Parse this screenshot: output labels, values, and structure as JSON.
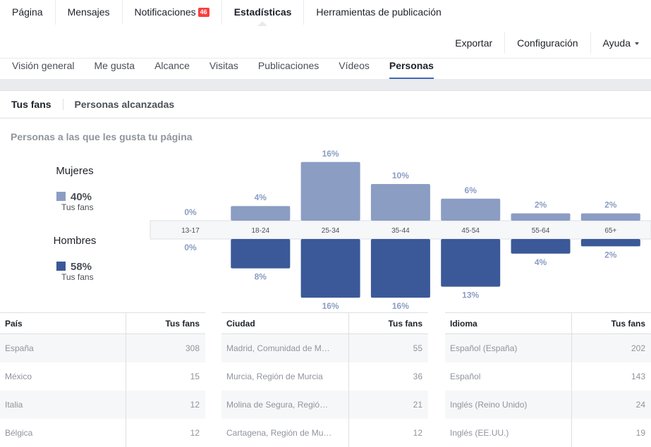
{
  "nav": {
    "tabs": [
      "Página",
      "Mensajes",
      "Notificaciones",
      "Estadísticas",
      "Herramientas de publicación"
    ],
    "badge": 46
  },
  "actions": [
    "Exportar",
    "Configuración",
    "Ayuda"
  ],
  "sub_tabs": [
    "Visión general",
    "Me gusta",
    "Alcance",
    "Visitas",
    "Publicaciones",
    "Vídeos",
    "Personas"
  ],
  "toggle": [
    "Tus fans",
    "Personas alcanzadas"
  ],
  "section_title": "Personas a las que les gusta tu página",
  "chart_data": {
    "type": "bar",
    "categories": [
      "13-17",
      "18-24",
      "25-34",
      "35-44",
      "45-54",
      "55-64",
      "65+"
    ],
    "series": [
      {
        "name": "Mujeres",
        "color": "#8b9dc3",
        "values": [
          0,
          4,
          16,
          10,
          6,
          2,
          2
        ],
        "value_labels": [
          "0%",
          "4%",
          "16%",
          "10%",
          "6%",
          "2%",
          "2%"
        ],
        "total": 40,
        "total_label": "40%",
        "total_caption": "Tus fans"
      },
      {
        "name": "Hombres",
        "color": "#3b5998",
        "values": [
          0,
          8,
          16,
          16,
          13,
          4,
          2
        ],
        "value_labels": [
          "0%",
          "8%",
          "16%",
          "16%",
          "13%",
          "4%",
          "2%"
        ],
        "total": 58,
        "total_label": "58%",
        "total_caption": "Tus fans"
      }
    ]
  },
  "tables": [
    {
      "header": [
        "País",
        "Tus fans"
      ],
      "rows": [
        [
          "España",
          308
        ],
        [
          "México",
          15
        ],
        [
          "Italia",
          12
        ],
        [
          "Bélgica",
          12
        ]
      ]
    },
    {
      "header": [
        "Ciudad",
        "Tus fans"
      ],
      "rows": [
        [
          "Madrid, Comunidad de M…",
          55
        ],
        [
          "Murcia, Región de Murcia",
          36
        ],
        [
          "Molina de Segura, Regió…",
          21
        ],
        [
          "Cartagena, Región de Mu…",
          12
        ]
      ]
    },
    {
      "header": [
        "Idioma",
        "Tus fans"
      ],
      "rows": [
        [
          "Español (España)",
          202
        ],
        [
          "Español",
          143
        ],
        [
          "Inglés (Reino Unido)",
          24
        ],
        [
          "Inglés (EE.UU.)",
          19
        ]
      ]
    }
  ]
}
